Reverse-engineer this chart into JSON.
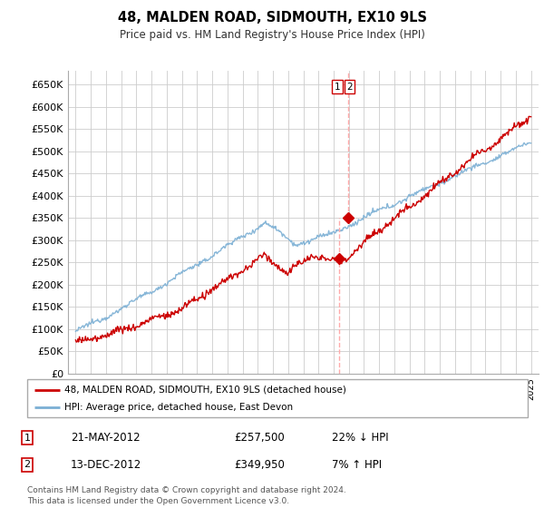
{
  "title": "48, MALDEN ROAD, SIDMOUTH, EX10 9LS",
  "subtitle": "Price paid vs. HM Land Registry's House Price Index (HPI)",
  "footer": "Contains HM Land Registry data © Crown copyright and database right 2024.\nThis data is licensed under the Open Government Licence v3.0.",
  "legend_line1": "48, MALDEN ROAD, SIDMOUTH, EX10 9LS (detached house)",
  "legend_line2": "HPI: Average price, detached house, East Devon",
  "annotation1_label": "1",
  "annotation1_date": "21-MAY-2012",
  "annotation1_price": "£257,500",
  "annotation1_hpi": "22% ↓ HPI",
  "annotation2_label": "2",
  "annotation2_date": "13-DEC-2012",
  "annotation2_price": "£349,950",
  "annotation2_hpi": "7% ↑ HPI",
  "sale1_x": 2012.38,
  "sale1_y": 257500,
  "sale2_x": 2012.95,
  "sale2_y": 349950,
  "ylim_min": 0,
  "ylim_max": 680000,
  "xlim_min": 1994.5,
  "xlim_max": 2025.5,
  "yticks": [
    0,
    50000,
    100000,
    150000,
    200000,
    250000,
    300000,
    350000,
    400000,
    450000,
    500000,
    550000,
    600000,
    650000
  ],
  "ytick_labels": [
    "£0",
    "£50K",
    "£100K",
    "£150K",
    "£200K",
    "£250K",
    "£300K",
    "£350K",
    "£400K",
    "£450K",
    "£500K",
    "£550K",
    "£600K",
    "£650K"
  ],
  "red_color": "#cc0000",
  "blue_color": "#7bafd4",
  "marker_color": "#cc0000",
  "vline_color": "#dd8888",
  "background_color": "#ffffff",
  "grid_color": "#cccccc"
}
